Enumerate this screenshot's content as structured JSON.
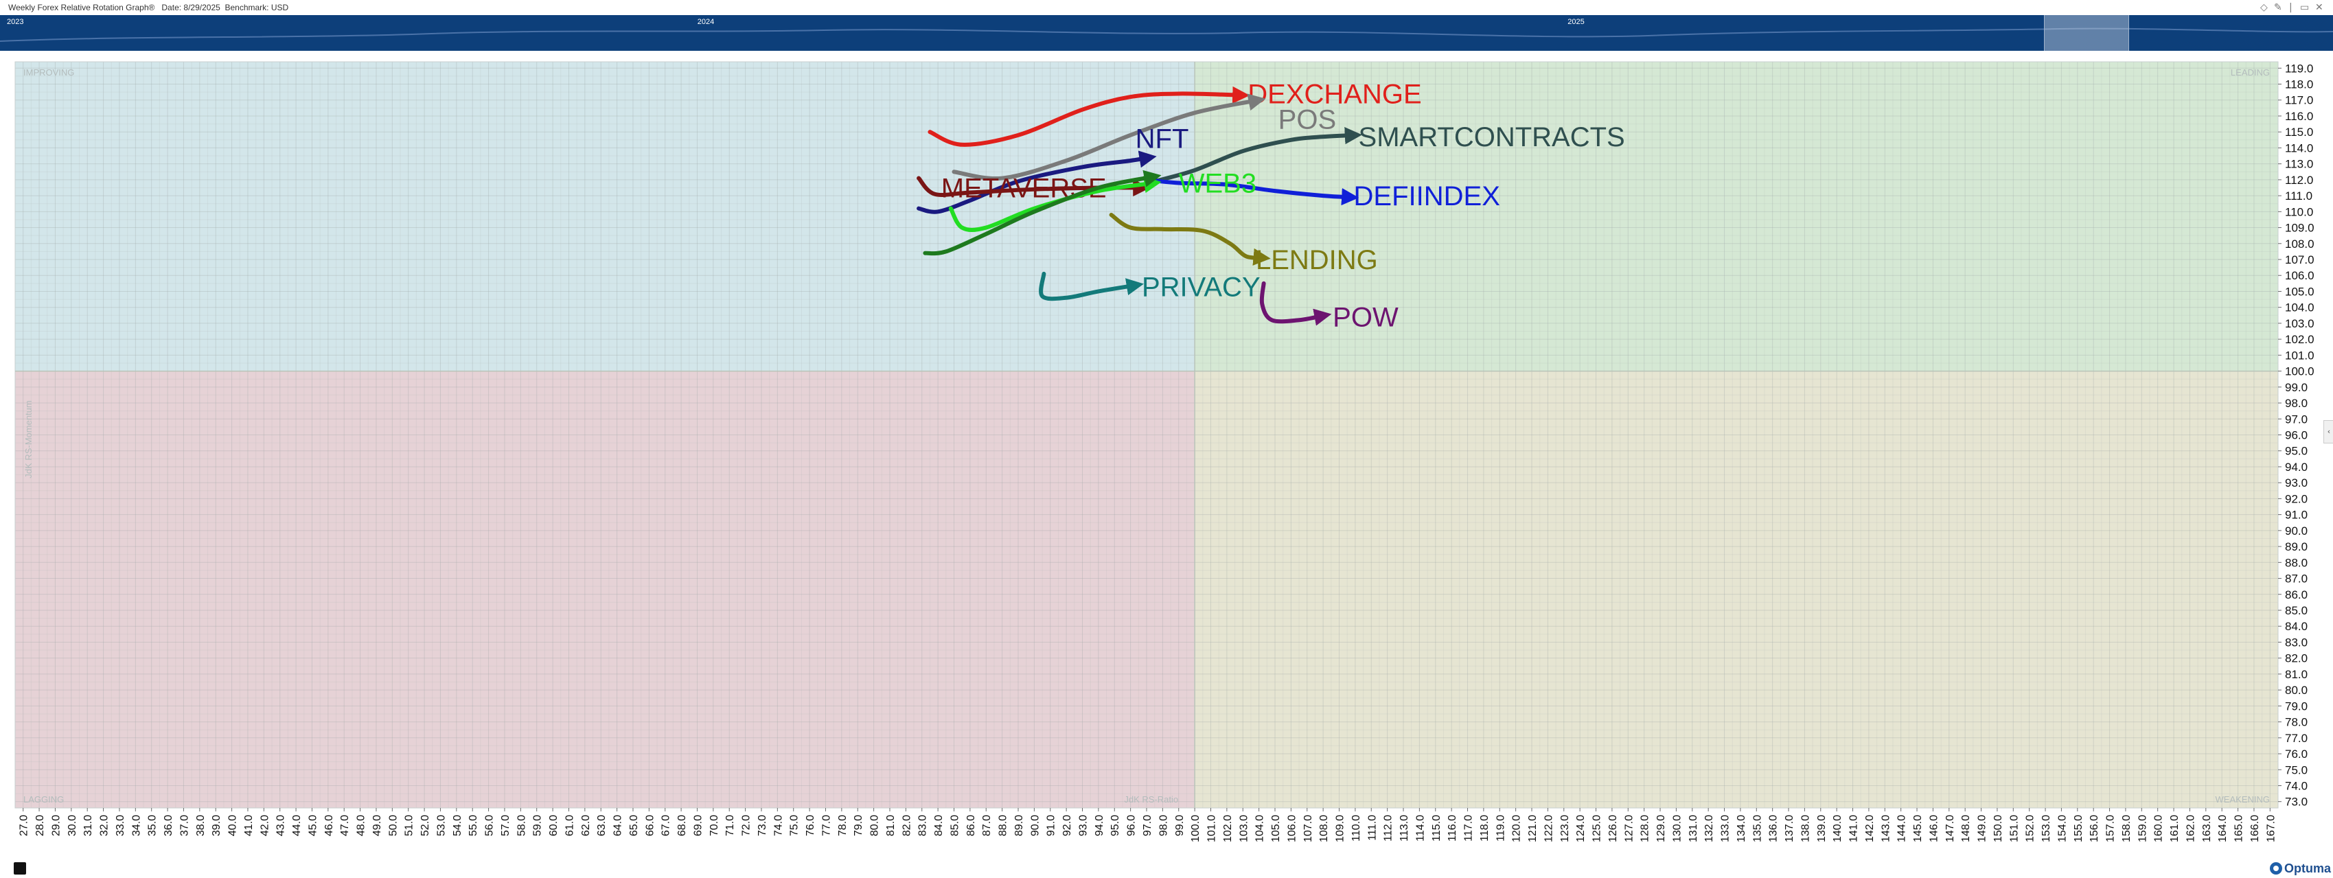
{
  "header": {
    "title": "Weekly Forex Relative Rotation Graph®",
    "date_label": "Date: 8/29/2025",
    "benchmark_label": "Benchmark: USD"
  },
  "timeline": {
    "years": [
      {
        "label": "2023",
        "pos": 0.0
      },
      {
        "label": "2024",
        "pos": 0.296
      },
      {
        "label": "2025",
        "pos": 0.669
      }
    ],
    "selection_start": 0.876,
    "selection_end": 0.912
  },
  "quadrants": {
    "improving": "IMPROVING",
    "leading": "LEADING",
    "lagging": "LAGGING",
    "weakening": "WEAKENING"
  },
  "brand": {
    "logo_text": "Optuma"
  },
  "chart_data": {
    "type": "scatter",
    "subtype": "relative-rotation-graph",
    "xlabel": "JdK RS-Ratio",
    "ylabel": "JdK RS-Momentum",
    "xlim": [
      26.5,
      167.5
    ],
    "ylim": [
      72.6,
      119.4
    ],
    "x_ticks_start": 27,
    "x_ticks_end": 167,
    "y_ticks_start": 73,
    "y_ticks_end": 119,
    "center": [
      100,
      100
    ],
    "quadrant_colors": {
      "improving": "#d3e6ea",
      "leading": "#d5e8d4",
      "lagging": "#e6d2d6",
      "weakening": "#e6e5d2"
    },
    "series": [
      {
        "name": "DEXCHANGE",
        "color": "#e0201b",
        "points": [
          [
            83.5,
            115.0
          ],
          [
            85.5,
            114.2
          ],
          [
            89,
            114.8
          ],
          [
            93,
            116.4
          ],
          [
            96,
            117.2
          ],
          [
            99,
            117.4
          ],
          [
            103,
            117.3
          ]
        ],
        "label_pos": [
          103.3,
          117.4
        ]
      },
      {
        "name": "POS",
        "color": "#7a7a7a",
        "points": [
          [
            85,
            112.5
          ],
          [
            88,
            112.1
          ],
          [
            92,
            113.2
          ],
          [
            96,
            114.8
          ],
          [
            100,
            116.2
          ],
          [
            104,
            117.0
          ]
        ],
        "label_pos": [
          105.2,
          115.8
        ]
      },
      {
        "name": "SMARTCONTRACTS",
        "color": "#2f4f4f",
        "points": [
          [
            97.5,
            111.9
          ],
          [
            100,
            112.6
          ],
          [
            103,
            113.8
          ],
          [
            106,
            114.5
          ],
          [
            108,
            114.7
          ],
          [
            110,
            114.8
          ]
        ],
        "label_pos": [
          110.2,
          114.7
        ]
      },
      {
        "name": "NFT",
        "color": "#1a1a80",
        "points": [
          [
            82.8,
            110.2
          ],
          [
            84,
            110.0
          ],
          [
            86,
            110.7
          ],
          [
            89,
            111.9
          ],
          [
            93,
            112.8
          ],
          [
            96,
            113.2
          ],
          [
            97.2,
            113.4
          ]
        ],
        "label_pos": [
          96.3,
          114.6
        ]
      },
      {
        "name": "DEFIINDEX",
        "color": "#1020d8",
        "points": [
          [
            97,
            112.0
          ],
          [
            99,
            111.8
          ],
          [
            102,
            111.7
          ],
          [
            105,
            111.3
          ],
          [
            108,
            111.0
          ],
          [
            109.8,
            110.9
          ]
        ],
        "label_pos": [
          109.9,
          111.0
        ]
      },
      {
        "name": "METAVERSE",
        "color": "#7a1515",
        "points": [
          [
            82.8,
            112.1
          ],
          [
            83.8,
            111.1
          ],
          [
            86,
            111.2
          ],
          [
            90,
            111.4
          ],
          [
            94,
            111.5
          ],
          [
            96.8,
            111.5
          ]
        ],
        "label_pos": [
          84.2,
          111.5
        ]
      },
      {
        "name": "WEB3",
        "color": "#22dd22",
        "points": [
          [
            84.8,
            110.2
          ],
          [
            85.5,
            109.0
          ],
          [
            87,
            109.0
          ],
          [
            90,
            110.2
          ],
          [
            94,
            111.3
          ],
          [
            97.5,
            111.8
          ]
        ],
        "label_pos": [
          99.0,
          111.8
        ]
      },
      {
        "name": "",
        "color": "#1e7a1e",
        "points": [
          [
            83.2,
            107.4
          ],
          [
            84.5,
            107.5
          ],
          [
            87,
            108.6
          ],
          [
            90,
            110.0
          ],
          [
            94,
            111.5
          ],
          [
            97.5,
            112.2
          ]
        ],
        "label_pos": [
          96.8,
          112.4
        ]
      },
      {
        "name": "LENDING",
        "color": "#7d7a13",
        "points": [
          [
            94.8,
            109.8
          ],
          [
            96,
            109.0
          ],
          [
            98,
            108.9
          ],
          [
            100.5,
            108.8
          ],
          [
            102.2,
            108.0
          ],
          [
            103.2,
            107.2
          ],
          [
            104.3,
            107.1
          ]
        ],
        "label_pos": [
          103.8,
          107.0
        ]
      },
      {
        "name": "PRIVACY",
        "color": "#137a7a",
        "points": [
          [
            90.6,
            106.1
          ],
          [
            90.5,
            104.7
          ],
          [
            92,
            104.6
          ],
          [
            94,
            105.0
          ],
          [
            96.4,
            105.4
          ]
        ],
        "label_pos": [
          96.7,
          105.3
        ]
      },
      {
        "name": "POW",
        "color": "#6d1470",
        "points": [
          [
            104.3,
            105.5
          ],
          [
            104.2,
            104.2
          ],
          [
            104.8,
            103.2
          ],
          [
            106.5,
            103.2
          ],
          [
            108.1,
            103.5
          ]
        ],
        "label_pos": [
          108.6,
          103.4
        ]
      }
    ]
  }
}
